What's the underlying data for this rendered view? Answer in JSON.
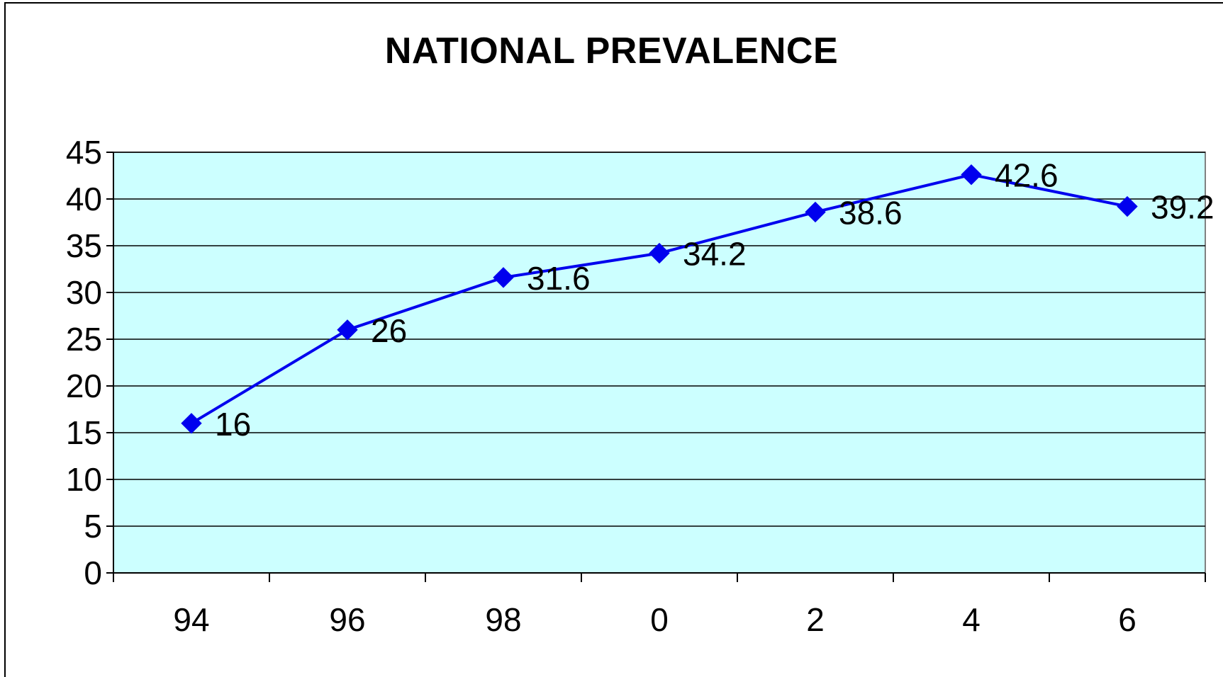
{
  "chart_data": {
    "type": "line",
    "title": "NATIONAL PREVALENCE",
    "categories": [
      "94",
      "96",
      "98",
      "0",
      "2",
      "4",
      "6"
    ],
    "series": [
      {
        "values": [
          16,
          26,
          31.6,
          34.2,
          38.6,
          42.6,
          39.2
        ],
        "data_labels": [
          "16",
          "26",
          "31.6",
          "34.2",
          "38.6",
          "42.6",
          "39.2"
        ],
        "color": "#0000ee",
        "marker": "diamond"
      }
    ],
    "ylim": [
      0,
      45
    ],
    "yticks": [
      "0",
      "5",
      "10",
      "15",
      "20",
      "25",
      "30",
      "35",
      "40",
      "45"
    ],
    "grid": true,
    "legend": "none",
    "plot_background": "#ccffff",
    "gridline_color": "#000000"
  }
}
